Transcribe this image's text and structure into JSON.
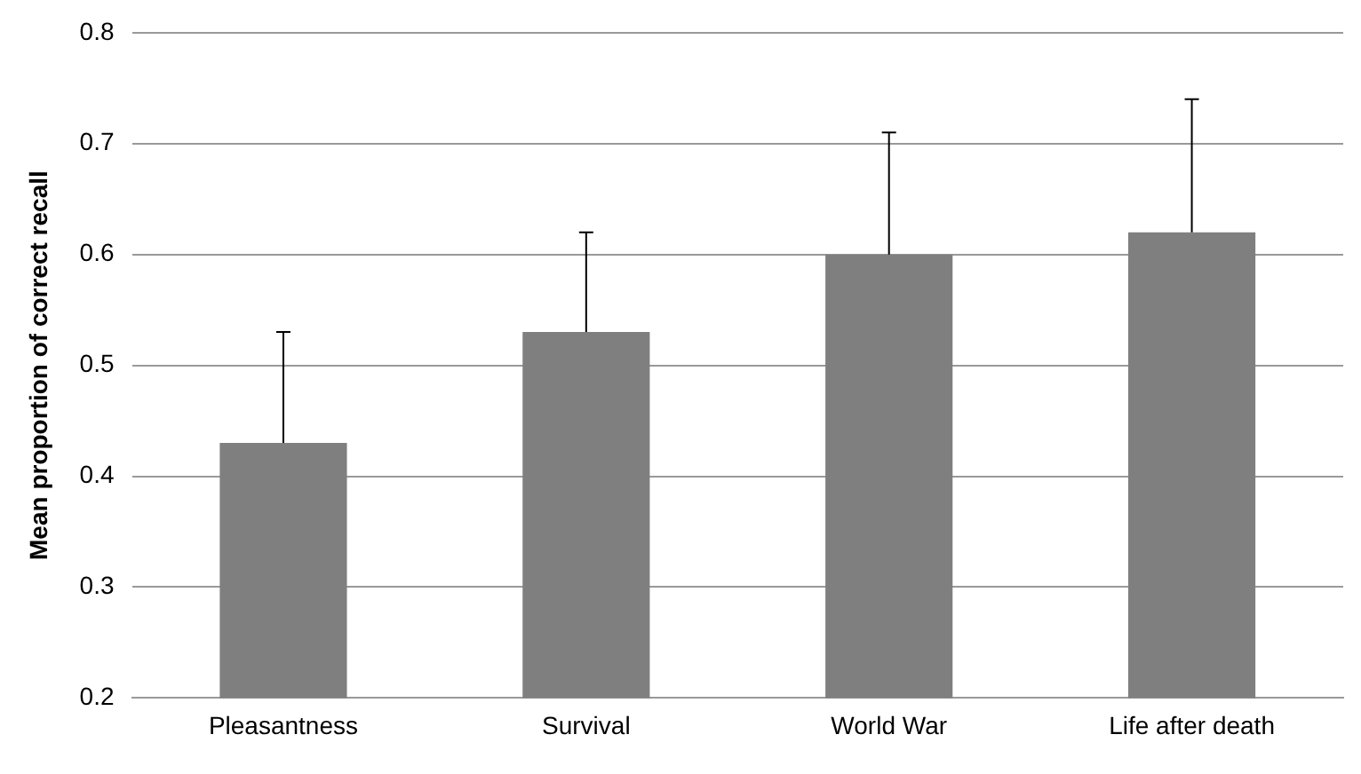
{
  "chart_data": {
    "type": "bar",
    "ylabel": "Mean proportion of correct recall",
    "categories": [
      "Pleasantness",
      "Survival",
      "World War",
      "Life after death"
    ],
    "values": [
      0.43,
      0.53,
      0.6,
      0.62
    ],
    "errors": [
      [
        0.43,
        0.53
      ],
      [
        0.53,
        0.62
      ],
      [
        0.6,
        0.71
      ],
      [
        0.62,
        0.74
      ]
    ],
    "color": "#7f7f80",
    "ylim": [
      0.2,
      0.8
    ],
    "yticks": [
      0.2,
      0.3,
      0.4,
      0.5,
      0.6,
      0.7,
      0.8
    ],
    "grid": "y",
    "legend": false
  }
}
